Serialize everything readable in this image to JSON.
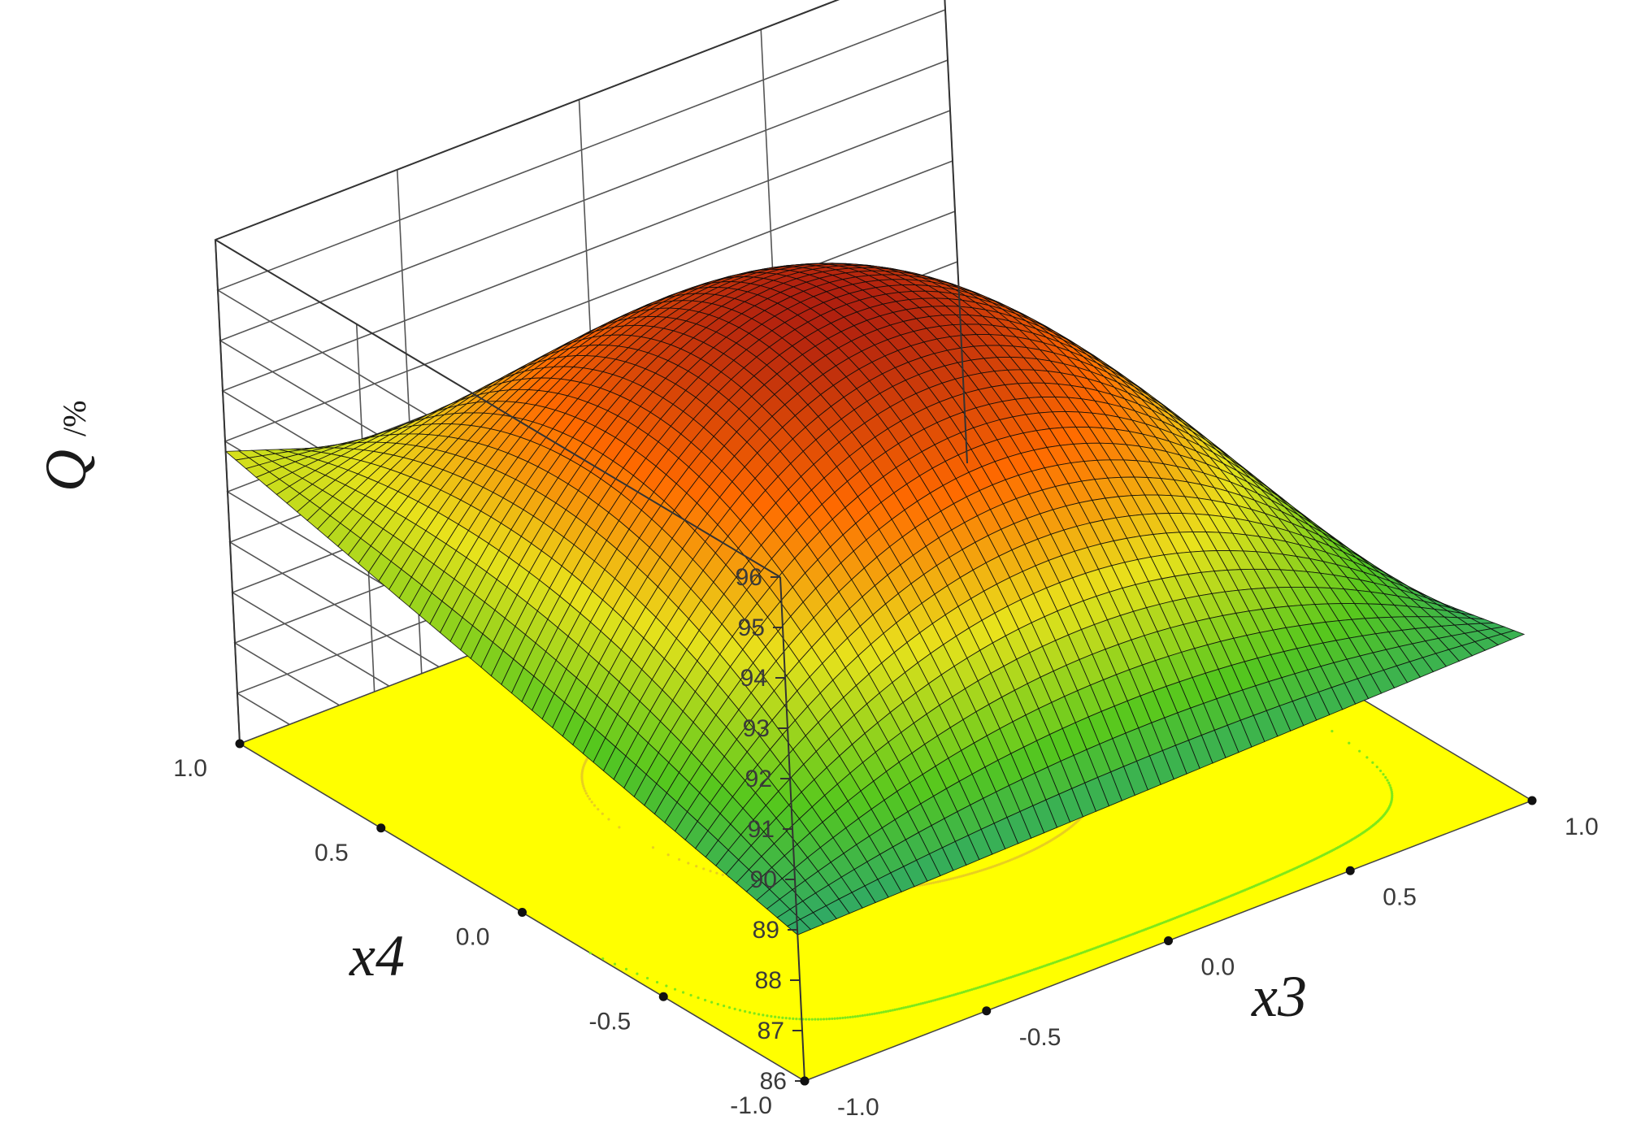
{
  "chart_data": {
    "type": "surface3d",
    "title": "",
    "x_axis": {
      "label": "x3",
      "range": [
        -1.0,
        1.0
      ],
      "ticks": [
        "-1.0",
        "-0.5",
        "0.0",
        "0.5",
        "1.0"
      ]
    },
    "y_axis": {
      "label": "x4",
      "range": [
        -1.0,
        1.0
      ],
      "ticks": [
        "-1.0",
        "-0.5",
        "0.0",
        "0.5",
        "1.0"
      ]
    },
    "z_axis": {
      "label": "Q",
      "unit": "/%",
      "range": [
        86,
        96
      ],
      "ticks": [
        "86",
        "87",
        "88",
        "89",
        "90",
        "91",
        "92",
        "93",
        "94",
        "95",
        "96"
      ]
    },
    "surface_corners": [
      {
        "x3": -1.0,
        "x4": -1.0,
        "Q": 88.9
      },
      {
        "x3": -1.0,
        "x4": 1.0,
        "Q": 91.8
      },
      {
        "x3": 1.0,
        "x4": 1.0,
        "Q": 86.8
      },
      {
        "x3": 1.0,
        "x4": -1.0,
        "Q": 89.3
      }
    ],
    "surface_max": {
      "x3": -0.15,
      "x4": 0.15,
      "Q": 95.5
    },
    "colormap": [
      "#1a3f99",
      "#1d9a8a",
      "#55c71e",
      "#e8e21c",
      "#ff6a00",
      "#b0200f"
    ],
    "floor_color": "#ffff00",
    "grid": true
  }
}
